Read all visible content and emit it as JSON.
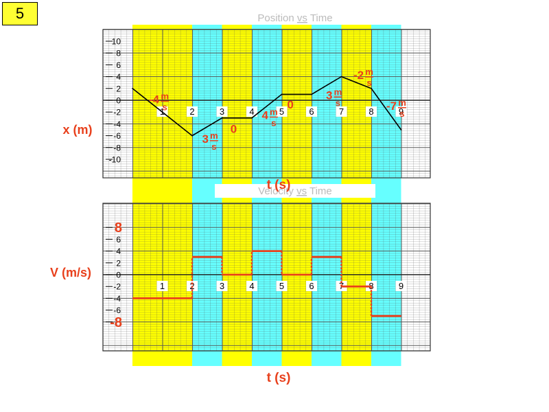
{
  "slide_number": "5",
  "colors": {
    "yellow": "#ffff00",
    "cyan": "#66ffff",
    "red": "#e8401c",
    "grid": "#555555"
  },
  "chart_data": [
    {
      "type": "line",
      "title_prefix": "Position ",
      "title_vs": "vs",
      "title_suffix": " Time",
      "ylabel": "x (m)",
      "xlabel": "t (s)",
      "yticks": [
        10,
        8,
        6,
        4,
        2,
        0,
        -2,
        -4,
        -6,
        -8,
        -10
      ],
      "xticks": [
        1,
        2,
        3,
        4,
        5,
        6,
        7,
        8,
        9
      ],
      "xlim": [
        0,
        9
      ],
      "ylim": [
        -10,
        10
      ],
      "x": [
        0,
        2,
        3,
        4,
        5,
        6,
        7,
        8,
        9
      ],
      "y": [
        2,
        -6,
        -3,
        -3,
        1,
        1,
        4,
        2,
        -5
      ],
      "slope_labels": [
        {
          "value": "-4",
          "num": "m",
          "den": "s",
          "t": 0.9,
          "x": -0.5
        },
        {
          "value": "3",
          "num": "m",
          "den": "s",
          "t": 2.55,
          "x": -7.2
        },
        {
          "value": "0",
          "num": "",
          "den": "",
          "t": 3.5,
          "x": -5.5
        },
        {
          "value": "4",
          "num": "m",
          "den": "s",
          "t": 4.55,
          "x": -3.2
        },
        {
          "value": "0",
          "num": "",
          "den": "",
          "t": 5.4,
          "x": -1.4
        },
        {
          "value": "3",
          "num": "m",
          "den": "s",
          "t": 6.7,
          "x": 0.2
        },
        {
          "value": "-2",
          "num": "m",
          "den": "s",
          "t": 7.75,
          "x": 3.6
        },
        {
          "value": "-7",
          "num": "m",
          "den": "s",
          "t": 8.85,
          "x": -1.6
        }
      ]
    },
    {
      "type": "line",
      "title_prefix": "Velocity ",
      "title_vs": "vs",
      "title_suffix": " Time",
      "ylabel": "V (m/s)",
      "xlabel": "t (s)",
      "yticks": [
        8,
        6,
        4,
        2,
        0,
        -2,
        -4,
        -6,
        -8
      ],
      "big_yticks": [
        8,
        -8
      ],
      "xticks": [
        1,
        2,
        3,
        4,
        5,
        6,
        7,
        8,
        9
      ],
      "xlim": [
        0,
        9
      ],
      "ylim": [
        -10,
        10
      ],
      "segments": [
        {
          "t0": 0,
          "t1": 2,
          "v": -4
        },
        {
          "t0": 2,
          "t1": 3,
          "v": 3
        },
        {
          "t0": 3,
          "t1": 4,
          "v": 0
        },
        {
          "t0": 4,
          "t1": 5,
          "v": 4
        },
        {
          "t0": 5,
          "t1": 6,
          "v": 0
        },
        {
          "t0": 6,
          "t1": 7,
          "v": 3
        },
        {
          "t0": 7,
          "t1": 8,
          "v": -2
        },
        {
          "t0": 8,
          "t1": 9,
          "v": -7
        }
      ]
    }
  ]
}
